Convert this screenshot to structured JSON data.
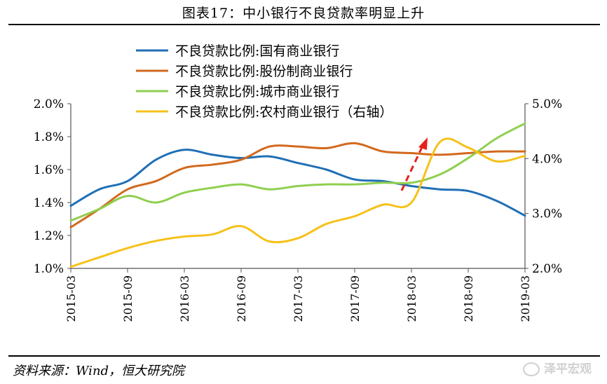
{
  "title": "图表17：中小银行不良贷款率明显上升",
  "source": "资料来源：Wind，恒大研究院",
  "watermark": "泽平宏观",
  "chart_data": {
    "type": "line",
    "x_labels": [
      "2015-03",
      "2015-09",
      "2016-03",
      "2016-09",
      "2017-03",
      "2017-09",
      "2018-03",
      "2018-09",
      "2019-03"
    ],
    "x": [
      "2015-03",
      "2015-06",
      "2015-09",
      "2015-12",
      "2016-03",
      "2016-06",
      "2016-09",
      "2016-12",
      "2017-03",
      "2017-06",
      "2017-09",
      "2017-12",
      "2018-03",
      "2018-06",
      "2018-09",
      "2018-12",
      "2019-03"
    ],
    "y_left": {
      "min": 1.0,
      "max": 2.0,
      "ticks": [
        "1.0%",
        "1.2%",
        "1.4%",
        "1.6%",
        "1.8%",
        "2.0%"
      ]
    },
    "y_right": {
      "min": 2.0,
      "max": 5.0,
      "ticks": [
        "2.0%",
        "3.0%",
        "4.0%",
        "5.0%"
      ]
    },
    "series": [
      {
        "name": "不良贷款比例:国有商业银行",
        "axis": "left",
        "color": "#1f6fb5",
        "values": [
          1.38,
          1.48,
          1.53,
          1.66,
          1.72,
          1.69,
          1.67,
          1.68,
          1.64,
          1.6,
          1.54,
          1.53,
          1.5,
          1.48,
          1.47,
          1.41,
          1.32
        ]
      },
      {
        "name": "不良贷款比例:股份制商业银行",
        "axis": "left",
        "color": "#d2691e",
        "values": [
          1.25,
          1.36,
          1.48,
          1.53,
          1.61,
          1.63,
          1.66,
          1.74,
          1.74,
          1.73,
          1.76,
          1.71,
          1.7,
          1.69,
          1.7,
          1.71,
          1.71
        ]
      },
      {
        "name": "不良贷款比例:城市商业银行",
        "axis": "left",
        "color": "#8fcf4f",
        "values": [
          1.29,
          1.36,
          1.44,
          1.4,
          1.46,
          1.49,
          1.51,
          1.48,
          1.5,
          1.51,
          1.51,
          1.52,
          1.52,
          1.57,
          1.67,
          1.79,
          1.88
        ]
      },
      {
        "name": "不良贷款比例:农村商业银行（右轴）",
        "axis": "right",
        "color": "#f6c11a",
        "values": [
          2.03,
          2.2,
          2.37,
          2.5,
          2.58,
          2.62,
          2.77,
          2.49,
          2.55,
          2.81,
          2.95,
          3.16,
          3.2,
          4.3,
          4.2,
          3.95,
          4.05
        ]
      }
    ]
  }
}
